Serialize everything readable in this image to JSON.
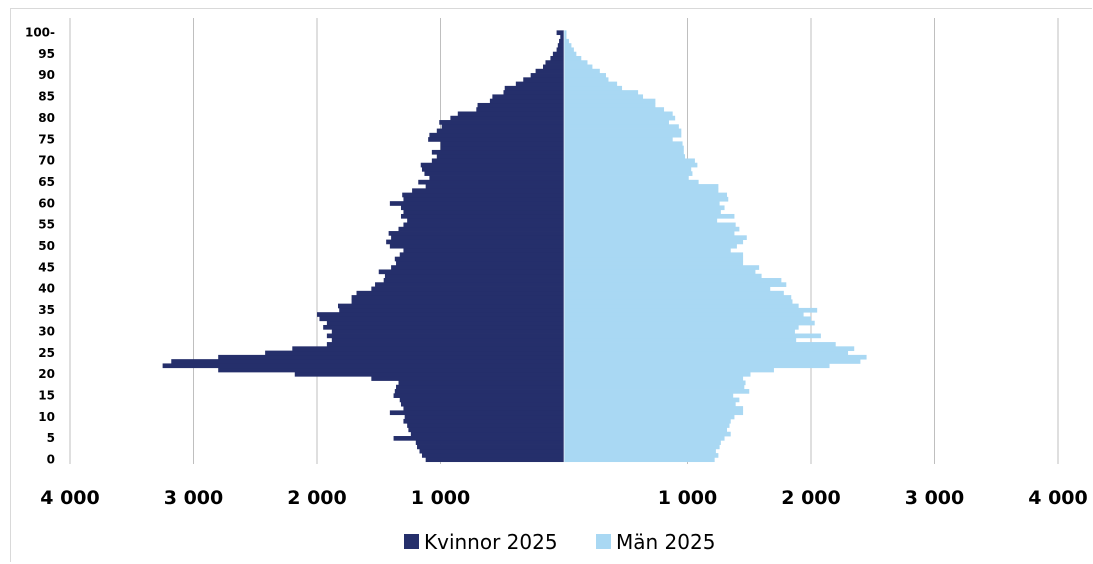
{
  "chart_data": {
    "type": "bar",
    "orientation": "horizontal-population-pyramid",
    "title": "",
    "xlim": [
      -4000,
      4000
    ],
    "x_tick_values": [
      -4000,
      -3000,
      -2000,
      -1000,
      1000,
      2000,
      3000,
      4000
    ],
    "x_tick_labels": [
      "4 000",
      "3 000",
      "2 000",
      "1 000",
      "1 000",
      "2 000",
      "3 000",
      "4 000"
    ],
    "y_tick_labels": [
      {
        "age": 0,
        "label": "0"
      },
      {
        "age": 5,
        "label": "5"
      },
      {
        "age": 10,
        "label": "10"
      },
      {
        "age": 15,
        "label": "15"
      },
      {
        "age": 20,
        "label": "20"
      },
      {
        "age": 25,
        "label": "25"
      },
      {
        "age": 30,
        "label": "30"
      },
      {
        "age": 35,
        "label": "35"
      },
      {
        "age": 40,
        "label": "40"
      },
      {
        "age": 45,
        "label": "45"
      },
      {
        "age": 50,
        "label": "50"
      },
      {
        "age": 55,
        "label": "55"
      },
      {
        "age": 60,
        "label": "60"
      },
      {
        "age": 65,
        "label": "65"
      },
      {
        "age": 70,
        "label": "70"
      },
      {
        "age": 75,
        "label": "75"
      },
      {
        "age": 80,
        "label": "80"
      },
      {
        "age": 85,
        "label": "85"
      },
      {
        "age": 90,
        "label": "90"
      },
      {
        "age": 95,
        "label": "95"
      },
      {
        "age": 100,
        "label": "100-"
      }
    ],
    "grid": "vertical",
    "legend_position": "bottom",
    "ages": [
      0,
      1,
      2,
      3,
      4,
      5,
      6,
      7,
      8,
      9,
      10,
      11,
      12,
      13,
      14,
      15,
      16,
      17,
      18,
      19,
      20,
      21,
      22,
      23,
      24,
      25,
      26,
      27,
      28,
      29,
      30,
      31,
      32,
      33,
      34,
      35,
      36,
      37,
      38,
      39,
      40,
      41,
      42,
      43,
      44,
      45,
      46,
      47,
      48,
      49,
      50,
      51,
      52,
      53,
      54,
      55,
      56,
      57,
      58,
      59,
      60,
      61,
      62,
      63,
      64,
      65,
      66,
      67,
      68,
      69,
      70,
      71,
      72,
      73,
      74,
      75,
      76,
      77,
      78,
      79,
      80,
      81,
      82,
      83,
      84,
      85,
      86,
      87,
      88,
      89,
      90,
      91,
      92,
      93,
      94,
      95,
      96,
      97,
      98,
      99,
      100
    ],
    "series": [
      {
        "name": "Kvinnor 2025",
        "color": "#252f6b",
        "side": "left",
        "values": [
          1120,
          1150,
          1170,
          1190,
          1200,
          1380,
          1240,
          1260,
          1270,
          1300,
          1290,
          1410,
          1300,
          1320,
          1330,
          1380,
          1370,
          1360,
          1340,
          1560,
          2180,
          2800,
          3250,
          3180,
          2800,
          2420,
          2200,
          1920,
          1880,
          1920,
          1880,
          1950,
          1920,
          1980,
          2000,
          1820,
          1830,
          1720,
          1720,
          1680,
          1560,
          1530,
          1460,
          1450,
          1500,
          1400,
          1360,
          1370,
          1330,
          1300,
          1410,
          1440,
          1400,
          1420,
          1340,
          1300,
          1270,
          1320,
          1300,
          1320,
          1410,
          1300,
          1310,
          1230,
          1120,
          1180,
          1090,
          1130,
          1150,
          1160,
          1070,
          1030,
          1070,
          1000,
          1000,
          1100,
          1090,
          1030,
          990,
          1010,
          920,
          860,
          710,
          700,
          600,
          580,
          490,
          480,
          390,
          330,
          270,
          230,
          170,
          150,
          110,
          90,
          60,
          50,
          40,
          30,
          60
        ]
      },
      {
        "name": "Män 2025",
        "color": "#a9d8f3",
        "side": "right",
        "values": [
          1220,
          1250,
          1230,
          1260,
          1270,
          1300,
          1350,
          1320,
          1340,
          1350,
          1380,
          1450,
          1450,
          1390,
          1420,
          1370,
          1500,
          1460,
          1470,
          1450,
          1510,
          1700,
          2150,
          2400,
          2450,
          2300,
          2350,
          2200,
          1880,
          2080,
          1870,
          1900,
          2030,
          2000,
          1940,
          2050,
          1900,
          1850,
          1840,
          1780,
          1670,
          1800,
          1760,
          1600,
          1550,
          1580,
          1450,
          1450,
          1450,
          1350,
          1400,
          1450,
          1480,
          1380,
          1420,
          1390,
          1240,
          1380,
          1270,
          1300,
          1260,
          1330,
          1320,
          1250,
          1250,
          1090,
          1010,
          1040,
          1030,
          1080,
          1060,
          980,
          970,
          970,
          960,
          880,
          950,
          950,
          930,
          850,
          900,
          880,
          810,
          740,
          740,
          640,
          600,
          470,
          430,
          360,
          340,
          290,
          230,
          190,
          140,
          100,
          80,
          60,
          40,
          20,
          20
        ]
      }
    ]
  }
}
